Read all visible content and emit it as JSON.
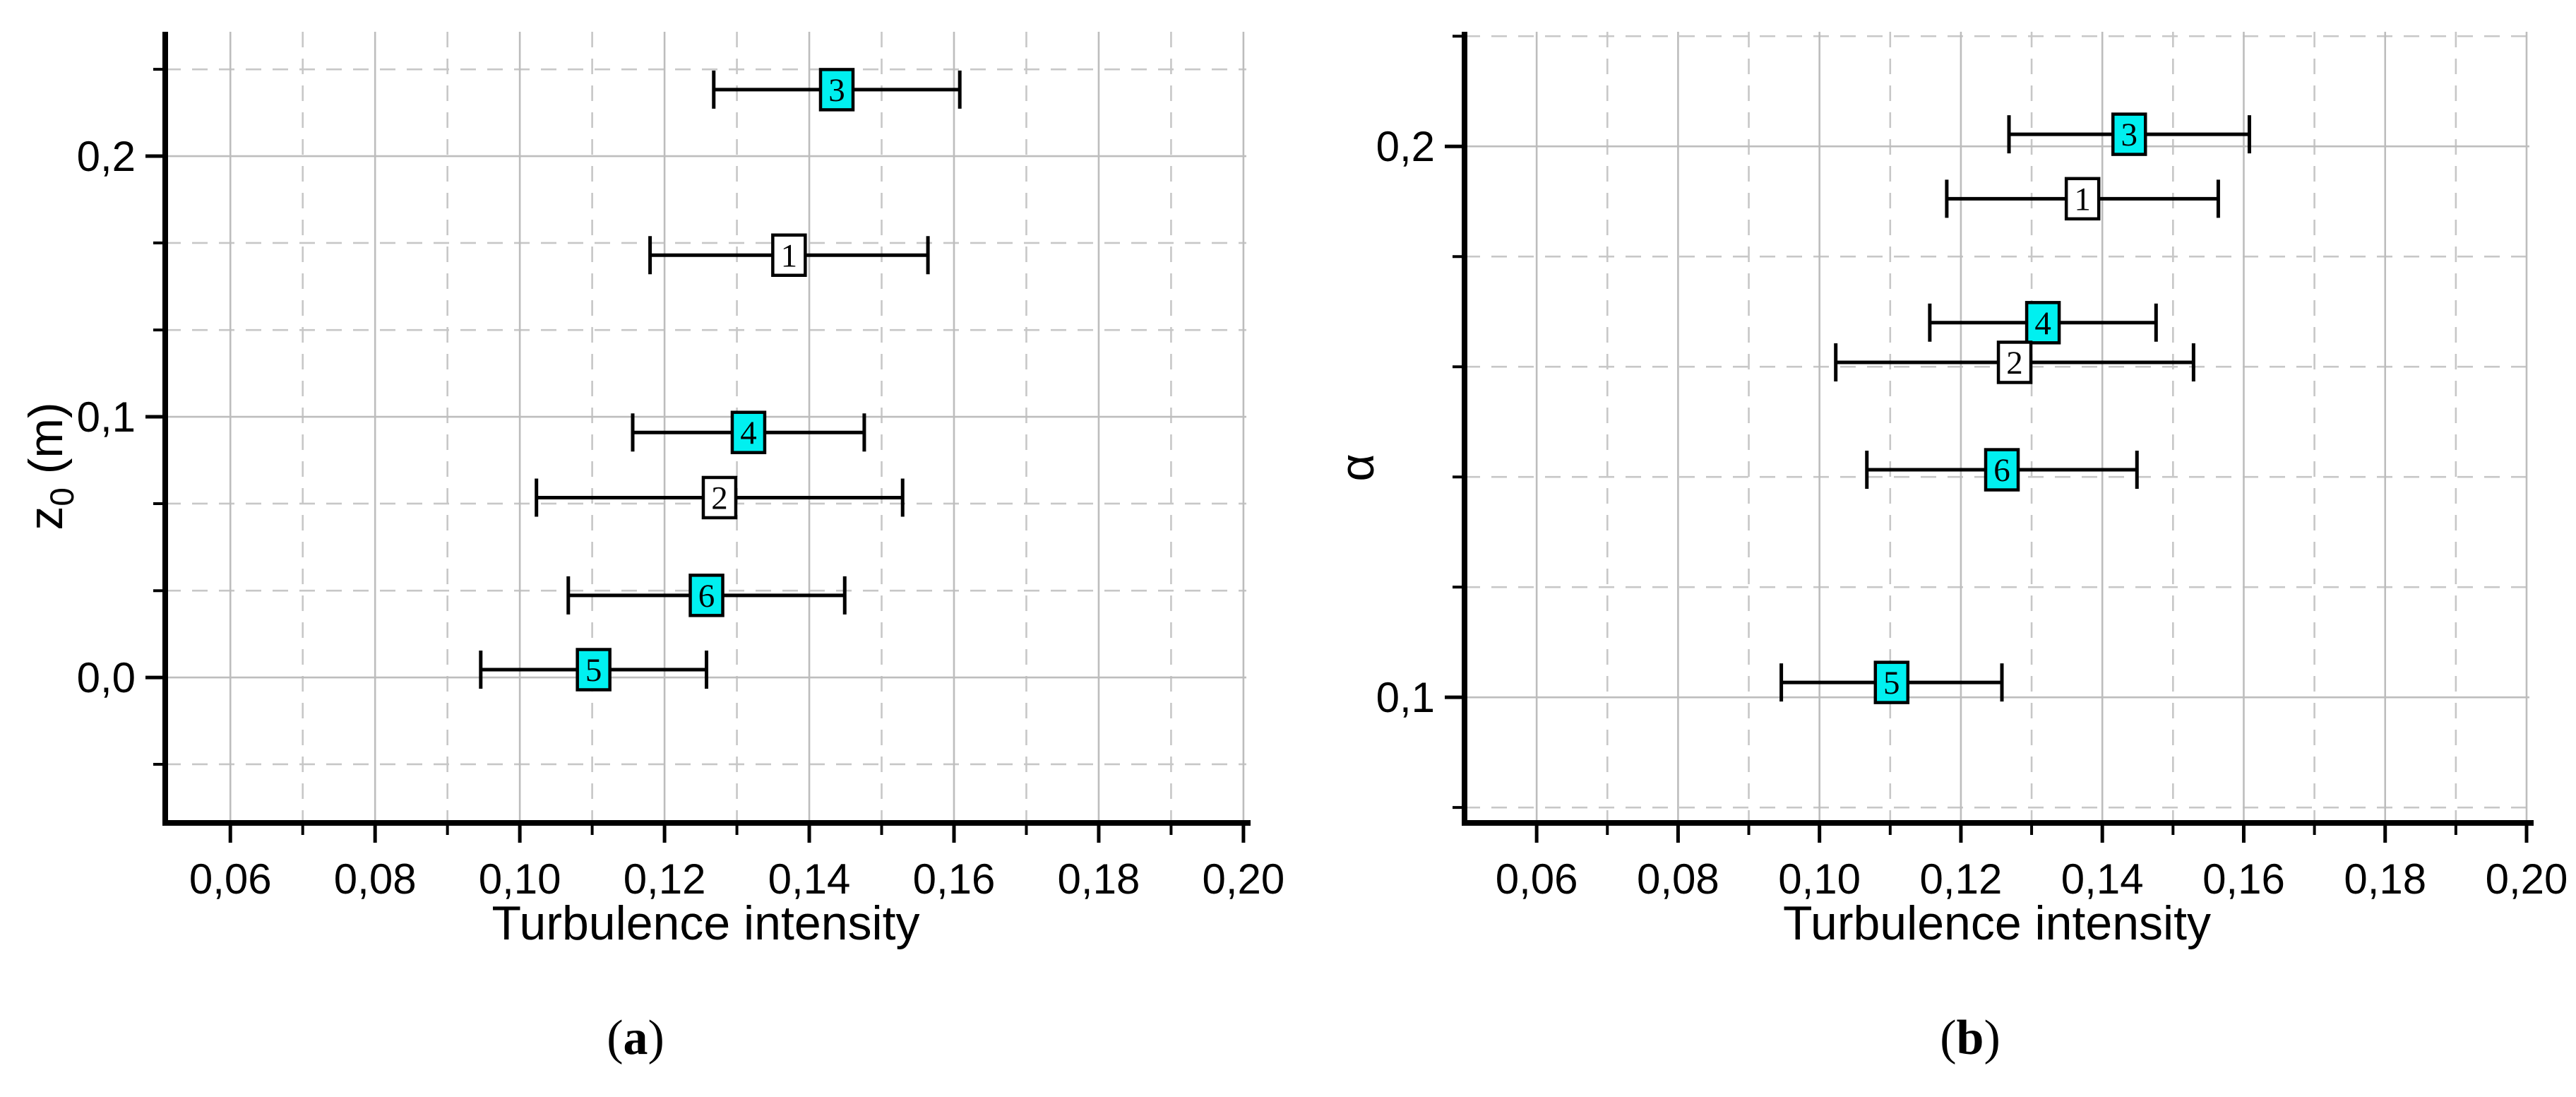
{
  "figure": {
    "background": "#ffffff",
    "axis_color": "#000000",
    "grid_major_color": "#bdbdbd",
    "grid_minor_color": "#c7c7c7",
    "errorbar_color": "#000000",
    "marker_border_color": "#000000",
    "marker_cyan": "#00F0F0",
    "marker_white": "#ffffff"
  },
  "captions": [
    {
      "open": "(",
      "letter": "a",
      "close": ")"
    },
    {
      "open": "(",
      "letter": "b",
      "close": ")"
    }
  ],
  "chart_data": [
    {
      "type": "scatter",
      "title": "",
      "xlabel": "Turbulence intensity",
      "ylabel": "z0 (m)",
      "ylabel_parts": [
        {
          "t": "z"
        },
        {
          "t": "0",
          "sub": true
        },
        {
          "t": " (m)"
        }
      ],
      "xlim": [
        0.051,
        0.2004
      ],
      "ylim": [
        -0.0558,
        0.2477
      ],
      "x_major_ticks": [
        0.06,
        0.08,
        0.1,
        0.12,
        0.14,
        0.16,
        0.18,
        0.2
      ],
      "x_major_labels": [
        "0,06",
        "0,08",
        "0,10",
        "0,12",
        "0,14",
        "0,16",
        "0,18",
        "0,20"
      ],
      "x_minor_ticks": [
        0.07,
        0.09,
        0.11,
        0.13,
        0.15,
        0.17,
        0.19
      ],
      "y_major_ticks": [
        0.0,
        0.1,
        0.2
      ],
      "y_major_labels": [
        "0,0",
        "0,1",
        "0,2"
      ],
      "y_minor_ticks": [
        -0.0333,
        0.0333,
        0.0667,
        0.1333,
        0.1667,
        0.2333
      ],
      "grid": {
        "major": "solid",
        "minor": "dashed"
      },
      "legend": "none",
      "points": [
        {
          "label": "3",
          "x": 0.1438,
          "y": 0.2255,
          "xerr": 0.017,
          "fill": "cyan"
        },
        {
          "label": "1",
          "x": 0.1372,
          "y": 0.162,
          "xerr": 0.0192,
          "fill": "white"
        },
        {
          "label": "4",
          "x": 0.1316,
          "y": 0.094,
          "xerr": 0.016,
          "fill": "cyan"
        },
        {
          "label": "2",
          "x": 0.1276,
          "y": 0.069,
          "xerr": 0.0253,
          "fill": "white"
        },
        {
          "label": "6",
          "x": 0.1258,
          "y": 0.0315,
          "xerr": 0.0191,
          "fill": "cyan"
        },
        {
          "label": "5",
          "x": 0.1102,
          "y": 0.003,
          "xerr": 0.0156,
          "fill": "cyan"
        }
      ]
    },
    {
      "type": "scatter",
      "title": "",
      "xlabel": "Turbulence intensity",
      "ylabel": "α",
      "ylabel_parts": [
        {
          "t": "α"
        }
      ],
      "xlim": [
        0.0498,
        0.2004
      ],
      "ylim": [
        0.0772,
        0.2208
      ],
      "x_major_ticks": [
        0.06,
        0.08,
        0.1,
        0.12,
        0.14,
        0.16,
        0.18,
        0.2
      ],
      "x_major_labels": [
        "0,06",
        "0,08",
        "0,10",
        "0,12",
        "0,14",
        "0,16",
        "0,18",
        "0,20"
      ],
      "x_minor_ticks": [
        0.07,
        0.09,
        0.11,
        0.13,
        0.15,
        0.17,
        0.19
      ],
      "y_major_ticks": [
        0.1,
        0.2
      ],
      "y_major_labels": [
        "0,1",
        "0,2"
      ],
      "y_minor_ticks": [
        0.08,
        0.12,
        0.14,
        0.16,
        0.18,
        0.22
      ],
      "grid": {
        "major": "solid",
        "minor": "dashed"
      },
      "legend": "none",
      "points": [
        {
          "label": "3",
          "x": 0.1438,
          "y": 0.2022,
          "xerr": 0.017,
          "fill": "cyan"
        },
        {
          "label": "1",
          "x": 0.1372,
          "y": 0.1905,
          "xerr": 0.0192,
          "fill": "white"
        },
        {
          "label": "4",
          "x": 0.1316,
          "y": 0.168,
          "xerr": 0.016,
          "fill": "cyan"
        },
        {
          "label": "2",
          "x": 0.1276,
          "y": 0.1608,
          "xerr": 0.0253,
          "fill": "white"
        },
        {
          "label": "6",
          "x": 0.1258,
          "y": 0.1413,
          "xerr": 0.0191,
          "fill": "cyan"
        },
        {
          "label": "5",
          "x": 0.1102,
          "y": 0.1027,
          "xerr": 0.0156,
          "fill": "cyan"
        }
      ]
    }
  ]
}
